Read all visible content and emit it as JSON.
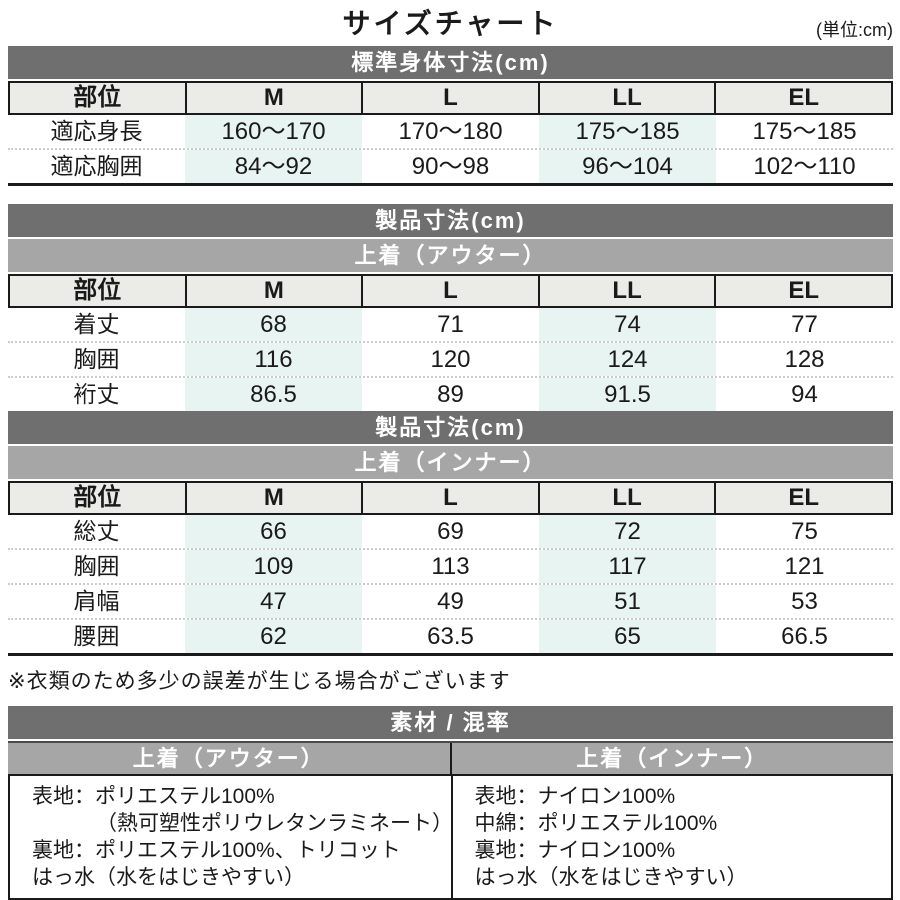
{
  "page": {
    "title": "サイズチャート",
    "unit_label": "(単位:cm)",
    "note": "※衣類のため多少の誤差が生じる場合がございます"
  },
  "colors": {
    "band_dark": "#6f6f6f",
    "band_mid": "#a6a6a6",
    "header_bg": "#ebebe7",
    "highlight_column_tint": "#e7f4f1",
    "line": "#1a1a1a"
  },
  "body_table": {
    "band": "標準身体寸法(cm)",
    "columns": [
      "部位",
      "M",
      "L",
      "LL",
      "EL"
    ],
    "rows": [
      {
        "label": "適応身長",
        "values": [
          "160〜170",
          "170〜180",
          "175〜185",
          "175〜185"
        ]
      },
      {
        "label": "適応胸囲",
        "values": [
          "84〜92",
          "90〜98",
          "96〜104",
          "102〜110"
        ]
      }
    ]
  },
  "outer_table": {
    "band": "製品寸法(cm)",
    "sub_band": "上着（アウター）",
    "columns": [
      "部位",
      "M",
      "L",
      "LL",
      "EL"
    ],
    "rows": [
      {
        "label": "着丈",
        "values": [
          "68",
          "71",
          "74",
          "77"
        ]
      },
      {
        "label": "胸囲",
        "values": [
          "116",
          "120",
          "124",
          "128"
        ]
      },
      {
        "label": "裄丈",
        "values": [
          "86.5",
          "89",
          "91.5",
          "94"
        ]
      }
    ]
  },
  "inner_table": {
    "band": "製品寸法(cm)",
    "sub_band": "上着（インナー）",
    "columns": [
      "部位",
      "M",
      "L",
      "LL",
      "EL"
    ],
    "rows": [
      {
        "label": "総丈",
        "values": [
          "66",
          "69",
          "72",
          "75"
        ]
      },
      {
        "label": "胸囲",
        "values": [
          "109",
          "113",
          "117",
          "121"
        ]
      },
      {
        "label": "肩幅",
        "values": [
          "47",
          "49",
          "51",
          "53"
        ]
      },
      {
        "label": "腰囲",
        "values": [
          "62",
          "63.5",
          "65",
          "66.5"
        ]
      }
    ]
  },
  "material_table": {
    "band": "素材 / 混率",
    "columns": [
      {
        "header": "上着（アウター）",
        "lines": [
          "表地：ポリエステル100%",
          "（熱可塑性ポリウレタンラミネート）",
          "裏地：ポリエステル100%、トリコット",
          "はっ水（水をはじきやすい）"
        ]
      },
      {
        "header": "上着（インナー）",
        "lines": [
          "表地：ナイロン100%",
          "中綿：ポリエステル100%",
          "裏地：ナイロン100%",
          "はっ水（水をはじきやすい）"
        ]
      }
    ]
  }
}
